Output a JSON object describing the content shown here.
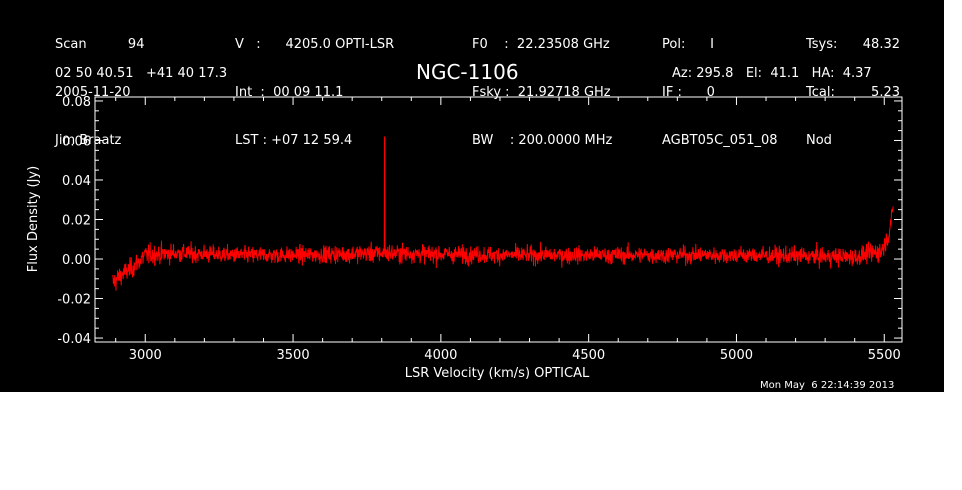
{
  "header": {
    "col1": [
      "Scan          94",
      "2005-11-20",
      "Jim Braatz"
    ],
    "col2": [
      "V   :      4205.0 OPTI-LSR",
      "Int  :  00 09 11.1",
      "LST : +07 12 59.4"
    ],
    "col3": [
      "F0    :  22.23508 GHz",
      "Fsky :  21.92718 GHz",
      "BW    : 200.0000 MHz"
    ],
    "col4": [
      "Pol:      I",
      "IF :      0",
      "AGBT05C_051_08"
    ],
    "col5_labels": [
      "Tsys:",
      "Tcal:",
      "Nod"
    ],
    "col5_values": [
      "48.32",
      "5.23",
      ""
    ],
    "coords": "02 50 40.51   +41 40 17.3",
    "pointing": "Az: 295.8   El:  41.1   HA:  4.37",
    "timestamp": "Mon May  6 22:14:39 2013"
  },
  "chart_data": {
    "type": "line",
    "title": "NGC-1106",
    "xlabel": "LSR Velocity (km/s) OPTICAL",
    "ylabel": "Flux Density (Jy)",
    "xlim": [
      2830,
      5560
    ],
    "ylim": [
      -0.042,
      0.082
    ],
    "x_ticks": [
      3000,
      3500,
      4000,
      4500,
      5000,
      5500
    ],
    "x_tick_labels": [
      "3000",
      "3500",
      "4000",
      "4500",
      "5000",
      "5500"
    ],
    "y_ticks": [
      -0.04,
      -0.02,
      0.0,
      0.02,
      0.04,
      0.06,
      0.08
    ],
    "y_tick_labels": [
      "-0.04",
      "-0.02",
      "0.00",
      "0.02",
      "0.04",
      "0.06",
      "0.08"
    ],
    "grid": false,
    "series": [
      {
        "color": "#ff0000",
        "x_start": 2890,
        "x_end": 5530,
        "spike": {
          "x": 3810,
          "y": 0.062
        },
        "envelope": [
          [
            2890,
            -0.012,
            0.014
          ],
          [
            2920,
            -0.008,
            0.012
          ],
          [
            2960,
            -0.004,
            0.012
          ],
          [
            3000,
            0.002,
            0.012
          ],
          [
            3100,
            0.003,
            0.011
          ],
          [
            3300,
            0.002,
            0.01
          ],
          [
            3500,
            0.002,
            0.01
          ],
          [
            3810,
            0.003,
            0.011
          ],
          [
            4200,
            0.002,
            0.01
          ],
          [
            4600,
            0.002,
            0.01
          ],
          [
            5000,
            0.002,
            0.01
          ],
          [
            5400,
            0.001,
            0.011
          ],
          [
            5490,
            0.004,
            0.012
          ],
          [
            5515,
            0.012,
            0.01
          ],
          [
            5530,
            0.026,
            0.006
          ]
        ]
      }
    ]
  },
  "colors": {
    "background": "#000000",
    "foreground": "#ffffff",
    "trace": "#ff0000"
  }
}
